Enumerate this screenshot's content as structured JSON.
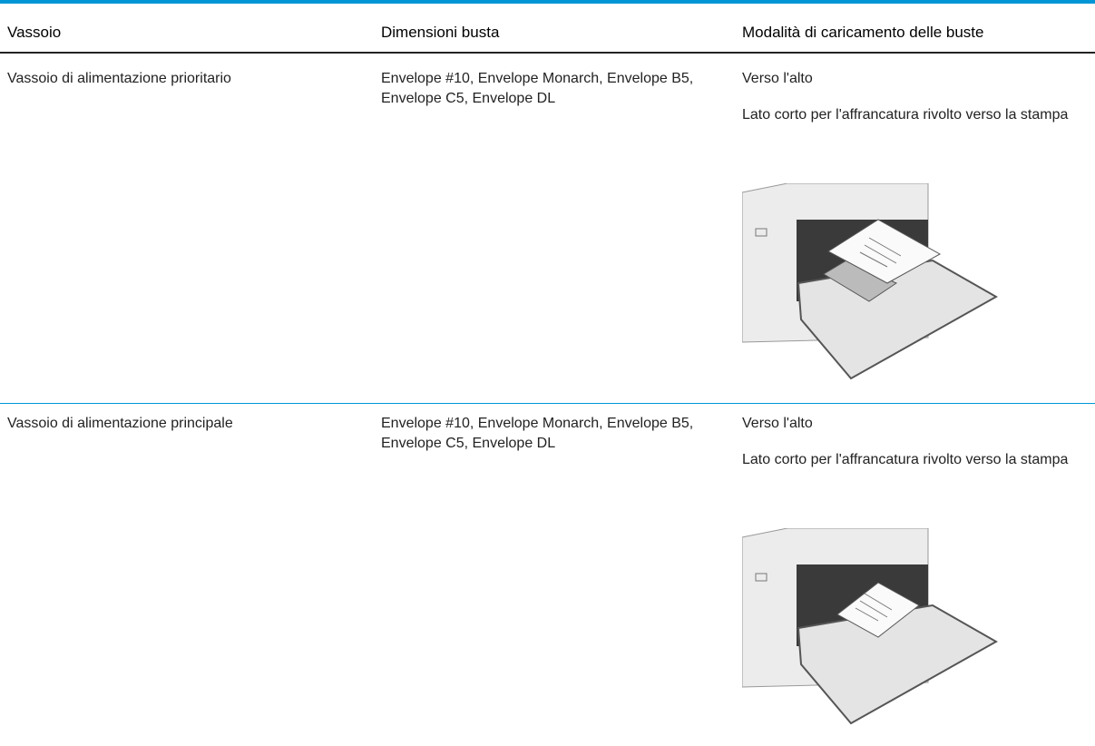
{
  "table": {
    "header": [
      "Vassoio",
      "Dimensioni busta",
      "Modalità di caricamento delle buste"
    ],
    "rows": [
      {
        "tray": "Vassoio di alimentazione prioritario",
        "sizes": "Envelope #10, Envelope Monarch, Envelope B5, Envelope C5, Envelope DL",
        "orientation": [
          "Verso l'alto",
          "Lato corto per l'affrancatura rivolto verso la stampa"
        ]
      },
      {
        "tray": "Vassoio di alimentazione principale",
        "sizes": "Envelope #10, Envelope Monarch, Envelope B5, Envelope C5, Envelope DL",
        "orientation": [
          "Verso l'alto",
          "Lato corto per l'affrancatura rivolto verso la stampa"
        ]
      }
    ]
  }
}
